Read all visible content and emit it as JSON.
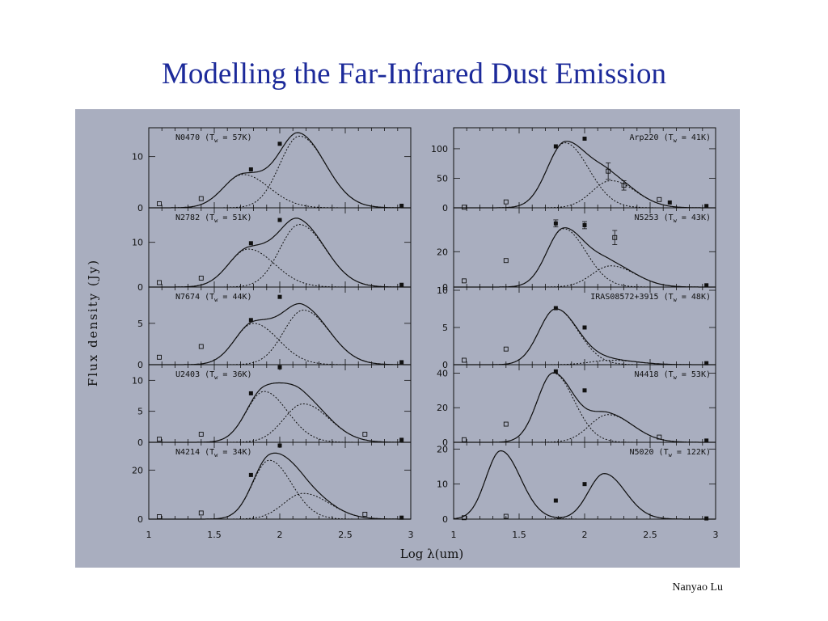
{
  "slide": {
    "title": "Modelling the Far-Infrared Dust Emission",
    "author": "Nanyao Lu"
  },
  "chart_data": {
    "type": "line",
    "title": "",
    "xlabel": "Log λ(um)",
    "ylabel": "Flux density (Jy)",
    "xlim": [
      1,
      3
    ],
    "x_ticks": [
      1,
      1.5,
      2,
      2.5,
      3
    ],
    "colors": {
      "panel_bg": "#a9aebf",
      "ink": "#111111"
    },
    "panels": [
      {
        "column": "left",
        "row": 0,
        "label": "N0470 (T",
        "temp": " = 57K)",
        "ylim": [
          0,
          15
        ],
        "yticks": [
          0,
          10
        ],
        "components": [
          {
            "amp": 6.5,
            "mu": 1.72,
            "sig": 0.2,
            "skew": 0.75
          },
          {
            "amp": 14.0,
            "mu": 2.15,
            "sig": 0.2,
            "skew": 0.75
          }
        ],
        "points": [
          {
            "x": 1.08,
            "y": 0.8,
            "marker": "open"
          },
          {
            "x": 1.4,
            "y": 1.8,
            "marker": "open"
          },
          {
            "x": 1.78,
            "y": 7.5,
            "marker": "filled"
          },
          {
            "x": 2.0,
            "y": 12.5,
            "marker": "filled"
          },
          {
            "x": 2.93,
            "y": 0.4,
            "marker": "filled"
          }
        ]
      },
      {
        "column": "left",
        "row": 1,
        "label": "N2782 (T",
        "temp": " = 51K)",
        "ylim": [
          0,
          17
        ],
        "yticks": [
          0,
          10
        ],
        "components": [
          {
            "amp": 8.5,
            "mu": 1.76,
            "sig": 0.2,
            "skew": 0.75
          },
          {
            "amp": 14.0,
            "mu": 2.15,
            "sig": 0.2,
            "skew": 0.75
          }
        ],
        "points": [
          {
            "x": 1.08,
            "y": 1.0,
            "marker": "open"
          },
          {
            "x": 1.4,
            "y": 2.0,
            "marker": "open"
          },
          {
            "x": 1.78,
            "y": 9.8,
            "marker": "filled"
          },
          {
            "x": 2.0,
            "y": 15.0,
            "marker": "filled"
          },
          {
            "x": 2.93,
            "y": 0.5,
            "marker": "filled"
          }
        ]
      },
      {
        "column": "left",
        "row": 2,
        "label": "N7674 (T",
        "temp": " = 44K)",
        "ylim": [
          0,
          9
        ],
        "yticks": [
          0,
          5
        ],
        "components": [
          {
            "amp": 5.0,
            "mu": 1.8,
            "sig": 0.19,
            "skew": 0.75
          },
          {
            "amp": 6.6,
            "mu": 2.18,
            "sig": 0.2,
            "skew": 0.75
          }
        ],
        "points": [
          {
            "x": 1.08,
            "y": 0.9,
            "marker": "open"
          },
          {
            "x": 1.4,
            "y": 2.2,
            "marker": "open"
          },
          {
            "x": 1.78,
            "y": 5.4,
            "marker": "filled"
          },
          {
            "x": 2.0,
            "y": 8.2,
            "marker": "filled"
          },
          {
            "x": 2.93,
            "y": 0.3,
            "marker": "filled"
          }
        ]
      },
      {
        "column": "left",
        "row": 3,
        "label": "U2403 (T",
        "temp": " = 36K)",
        "ylim": [
          0,
          12
        ],
        "yticks": [
          0,
          5,
          10
        ],
        "components": [
          {
            "amp": 8.2,
            "mu": 1.88,
            "sig": 0.18,
            "skew": 0.75
          },
          {
            "amp": 6.2,
            "mu": 2.18,
            "sig": 0.2,
            "skew": 0.75
          }
        ],
        "points": [
          {
            "x": 1.08,
            "y": 0.5,
            "marker": "open"
          },
          {
            "x": 1.4,
            "y": 1.3,
            "marker": "open"
          },
          {
            "x": 1.78,
            "y": 7.9,
            "marker": "filled"
          },
          {
            "x": 2.0,
            "y": 12.1,
            "marker": "filled"
          },
          {
            "x": 2.65,
            "y": 1.3,
            "marker": "open"
          },
          {
            "x": 2.93,
            "y": 0.4,
            "marker": "filled"
          }
        ]
      },
      {
        "column": "left",
        "row": 4,
        "label": "N4214 (T",
        "temp": " = 34K)",
        "ylim": [
          0,
          30
        ],
        "yticks": [
          0,
          20
        ],
        "components": [
          {
            "amp": 24.0,
            "mu": 1.92,
            "sig": 0.17,
            "skew": 0.75
          },
          {
            "amp": 10.5,
            "mu": 2.18,
            "sig": 0.2,
            "skew": 0.75
          }
        ],
        "points": [
          {
            "x": 1.08,
            "y": 1.0,
            "marker": "open"
          },
          {
            "x": 1.4,
            "y": 2.5,
            "marker": "open"
          },
          {
            "x": 1.78,
            "y": 18.0,
            "marker": "filled"
          },
          {
            "x": 2.0,
            "y": 30.0,
            "marker": "filled"
          },
          {
            "x": 2.65,
            "y": 2.0,
            "marker": "open"
          },
          {
            "x": 2.93,
            "y": 0.6,
            "marker": "filled"
          }
        ]
      },
      {
        "column": "right",
        "row": 0,
        "label": "Arp220 (T",
        "temp": " = 41K)",
        "ylim": [
          0,
          130
        ],
        "yticks": [
          0,
          50,
          100
        ],
        "components": [
          {
            "amp": 110.0,
            "mu": 1.85,
            "sig": 0.18,
            "skew": 0.75
          },
          {
            "amp": 46.0,
            "mu": 2.2,
            "sig": 0.19,
            "skew": 0.75
          }
        ],
        "points": [
          {
            "x": 1.08,
            "y": 1.0,
            "marker": "open"
          },
          {
            "x": 1.4,
            "y": 10.0,
            "marker": "open"
          },
          {
            "x": 1.78,
            "y": 104.0,
            "marker": "filled"
          },
          {
            "x": 2.0,
            "y": 117.0,
            "marker": "filled"
          },
          {
            "x": 2.18,
            "y": 62.0,
            "marker": "open",
            "err": 14
          },
          {
            "x": 2.3,
            "y": 38.0,
            "marker": "open",
            "err": 8
          },
          {
            "x": 2.57,
            "y": 14.0,
            "marker": "open"
          },
          {
            "x": 2.65,
            "y": 9.0,
            "marker": "filled"
          },
          {
            "x": 2.93,
            "y": 3.0,
            "marker": "filled"
          }
        ]
      },
      {
        "column": "right",
        "row": 1,
        "label": "N5253 (T",
        "temp": " = 43K)",
        "ylim": [
          0,
          43
        ],
        "yticks": [
          0,
          20
        ],
        "components": [
          {
            "amp": 33.0,
            "mu": 1.84,
            "sig": 0.17,
            "skew": 0.75
          },
          {
            "amp": 12.0,
            "mu": 2.2,
            "sig": 0.19,
            "skew": 0.75
          }
        ],
        "points": [
          {
            "x": 1.08,
            "y": 3.5,
            "marker": "open"
          },
          {
            "x": 1.4,
            "y": 15.0,
            "marker": "open"
          },
          {
            "x": 1.78,
            "y": 36.0,
            "marker": "filled",
            "err": 2
          },
          {
            "x": 2.0,
            "y": 35.0,
            "marker": "filled",
            "err": 2
          },
          {
            "x": 2.23,
            "y": 28.0,
            "marker": "open",
            "err": 4
          },
          {
            "x": 2.93,
            "y": 1.0,
            "marker": "filled"
          }
        ]
      },
      {
        "column": "right",
        "row": 2,
        "label": "IRAS08572+3915 (T",
        "temp": " = 48K)",
        "ylim": [
          0,
          10
        ],
        "yticks": [
          0,
          5,
          10
        ],
        "components": [
          {
            "amp": 7.5,
            "mu": 1.78,
            "sig": 0.17,
            "skew": 0.75
          },
          {
            "amp": 0.6,
            "mu": 2.2,
            "sig": 0.2,
            "skew": 0.75
          }
        ],
        "points": [
          {
            "x": 1.08,
            "y": 0.6,
            "marker": "open"
          },
          {
            "x": 1.4,
            "y": 2.1,
            "marker": "open"
          },
          {
            "x": 1.78,
            "y": 7.6,
            "marker": "filled"
          },
          {
            "x": 2.0,
            "y": 5.0,
            "marker": "filled"
          },
          {
            "x": 2.93,
            "y": 0.2,
            "marker": "filled"
          }
        ]
      },
      {
        "column": "right",
        "row": 3,
        "label": "N4418 (T",
        "temp": " = 53K)",
        "ylim": [
          0,
          43
        ],
        "yticks": [
          0,
          20,
          40
        ],
        "components": [
          {
            "amp": 40.0,
            "mu": 1.76,
            "sig": 0.16,
            "skew": 0.75
          },
          {
            "amp": 16.0,
            "mu": 2.18,
            "sig": 0.19,
            "skew": 0.75
          }
        ],
        "points": [
          {
            "x": 1.08,
            "y": 1.5,
            "marker": "open"
          },
          {
            "x": 1.4,
            "y": 10.5,
            "marker": "open"
          },
          {
            "x": 1.78,
            "y": 41.0,
            "marker": "filled"
          },
          {
            "x": 2.0,
            "y": 30.0,
            "marker": "filled"
          },
          {
            "x": 2.57,
            "y": 3.0,
            "marker": "open"
          },
          {
            "x": 2.93,
            "y": 1.0,
            "marker": "filled"
          }
        ]
      },
      {
        "column": "right",
        "row": 4,
        "label": "N5020 (T",
        "temp": " = 122K)",
        "ylim": [
          0,
          21
        ],
        "yticks": [
          0,
          10,
          20
        ],
        "components": [
          {
            "amp": 19.5,
            "mu": 1.36,
            "sig": 0.15,
            "skew": 0.75
          },
          {
            "amp": 13.0,
            "mu": 2.15,
            "sig": 0.16,
            "skew": 0.75
          }
        ],
        "points": [
          {
            "x": 1.08,
            "y": 0.4,
            "marker": "open"
          },
          {
            "x": 1.4,
            "y": 0.8,
            "marker": "open"
          },
          {
            "x": 1.78,
            "y": 5.3,
            "marker": "filled"
          },
          {
            "x": 2.0,
            "y": 10.0,
            "marker": "filled"
          },
          {
            "x": 2.93,
            "y": 0.2,
            "marker": "filled"
          }
        ]
      }
    ]
  }
}
